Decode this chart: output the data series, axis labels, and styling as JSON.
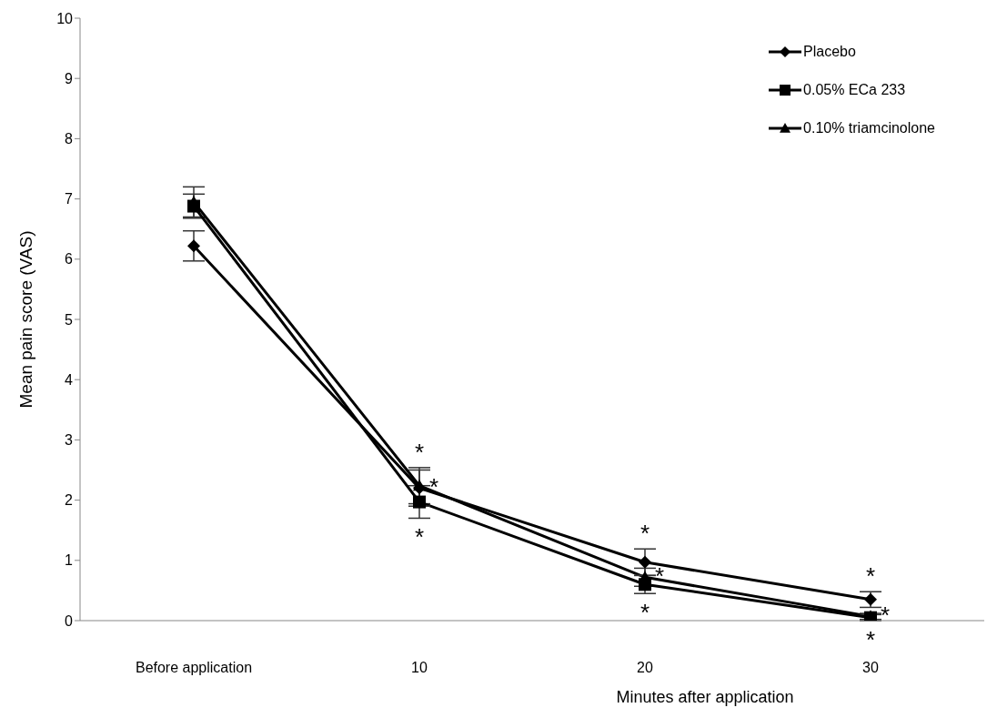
{
  "chart_data": {
    "type": "line",
    "xlabel": "Minutes after application",
    "ylabel": "Mean pain score (VAS)",
    "categories": [
      "Before application",
      "10",
      "20",
      "30"
    ],
    "series": [
      {
        "name": "Placebo",
        "color": "#000000",
        "marker": "diamond",
        "values": [
          6.22,
          2.2,
          0.97,
          0.35
        ],
        "errors": [
          0.25,
          0.3,
          0.22,
          0.13
        ]
      },
      {
        "name": "0.05% ECa 233",
        "color": "#000000",
        "marker": "square",
        "values": [
          6.88,
          1.97,
          0.6,
          0.05
        ],
        "errors": [
          0.2,
          0.27,
          0.15,
          0.05
        ]
      },
      {
        "name": "0.10% triamcinolone",
        "color": "#000000",
        "marker": "triangle",
        "values": [
          6.95,
          2.24,
          0.72,
          0.07
        ],
        "errors": [
          0.25,
          0.3,
          0.15,
          0.05
        ]
      }
    ],
    "ylim": [
      0,
      10
    ],
    "yticks": [
      0,
      1,
      2,
      3,
      4,
      5,
      6,
      7,
      8,
      9,
      10
    ],
    "grid": false,
    "legend": "top right",
    "line_style": "solid",
    "annotations": [
      {
        "text": "*",
        "x": "10",
        "y": 2.24
      },
      {
        "text": "*",
        "x": "10",
        "y": 2.2
      },
      {
        "text": "*",
        "x": "10",
        "y": 1.97
      },
      {
        "text": "*",
        "x": "20",
        "y": 0.97
      },
      {
        "text": "*",
        "x": "20",
        "y": 0.72
      },
      {
        "text": "*",
        "x": "20",
        "y": 0.6
      },
      {
        "text": "*",
        "x": "30",
        "y": 0.35
      },
      {
        "text": "*",
        "x": "30",
        "y": 0.07
      },
      {
        "text": "*",
        "x": "30",
        "y": 0.05
      }
    ]
  }
}
